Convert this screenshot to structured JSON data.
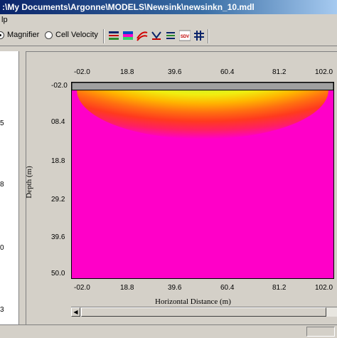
{
  "window": {
    "title": ":\\My Documents\\Argonne\\MODELS\\Newsink\\newsinkn_10.mdl"
  },
  "menu": {
    "items": [
      "lp"
    ]
  },
  "toolbar": {
    "view_modes": [
      {
        "label": "Magnifier",
        "selected": true
      },
      {
        "label": "Cell Velocity",
        "selected": false
      }
    ],
    "buttons": [
      {
        "icon": "grid-bars-icon"
      },
      {
        "icon": "color-layers-icon"
      },
      {
        "icon": "contour-lines-icon"
      },
      {
        "icon": "vector-arrows-icon"
      },
      {
        "icon": "list-lines-icon"
      },
      {
        "icon": "sdv-icon",
        "label": "SDV"
      },
      {
        "icon": "mesh-grid-icon"
      }
    ]
  },
  "left_panel": {
    "tick_labels": [
      "5",
      "8",
      "0",
      "3"
    ]
  },
  "chart_data": {
    "type": "heatmap",
    "title": "",
    "xlabel": "Horizontal Distance (m)",
    "ylabel": "Depth (m)",
    "x_ticks": [
      "-02.0",
      "18.8",
      "39.6",
      "60.4",
      "81.2",
      "102.0"
    ],
    "y_ticks": [
      "-02.0",
      "08.4",
      "18.8",
      "29.2",
      "39.6",
      "50.0"
    ],
    "xlim": [
      -2.0,
      102.0
    ],
    "ylim": [
      -2.0,
      50.0
    ],
    "y_inverted": true,
    "colormap": [
      "#ff00c8",
      "#ff2060",
      "#ff3a1e",
      "#ff7010",
      "#ffb400",
      "#f0ee10",
      "#c8f530",
      "#76e24a",
      "#2fd46a",
      "#00c0a0",
      "#0090d0",
      "#0048c8"
    ],
    "background_color": "#ff00c8",
    "layer_band": {
      "y_from": -2.0,
      "y_to": 0.0,
      "color": "#a0a0a0"
    },
    "plume": {
      "center_x": 50.0,
      "top_y": 0.0,
      "half_width": 50.0,
      "max_depth": 13.0
    }
  }
}
